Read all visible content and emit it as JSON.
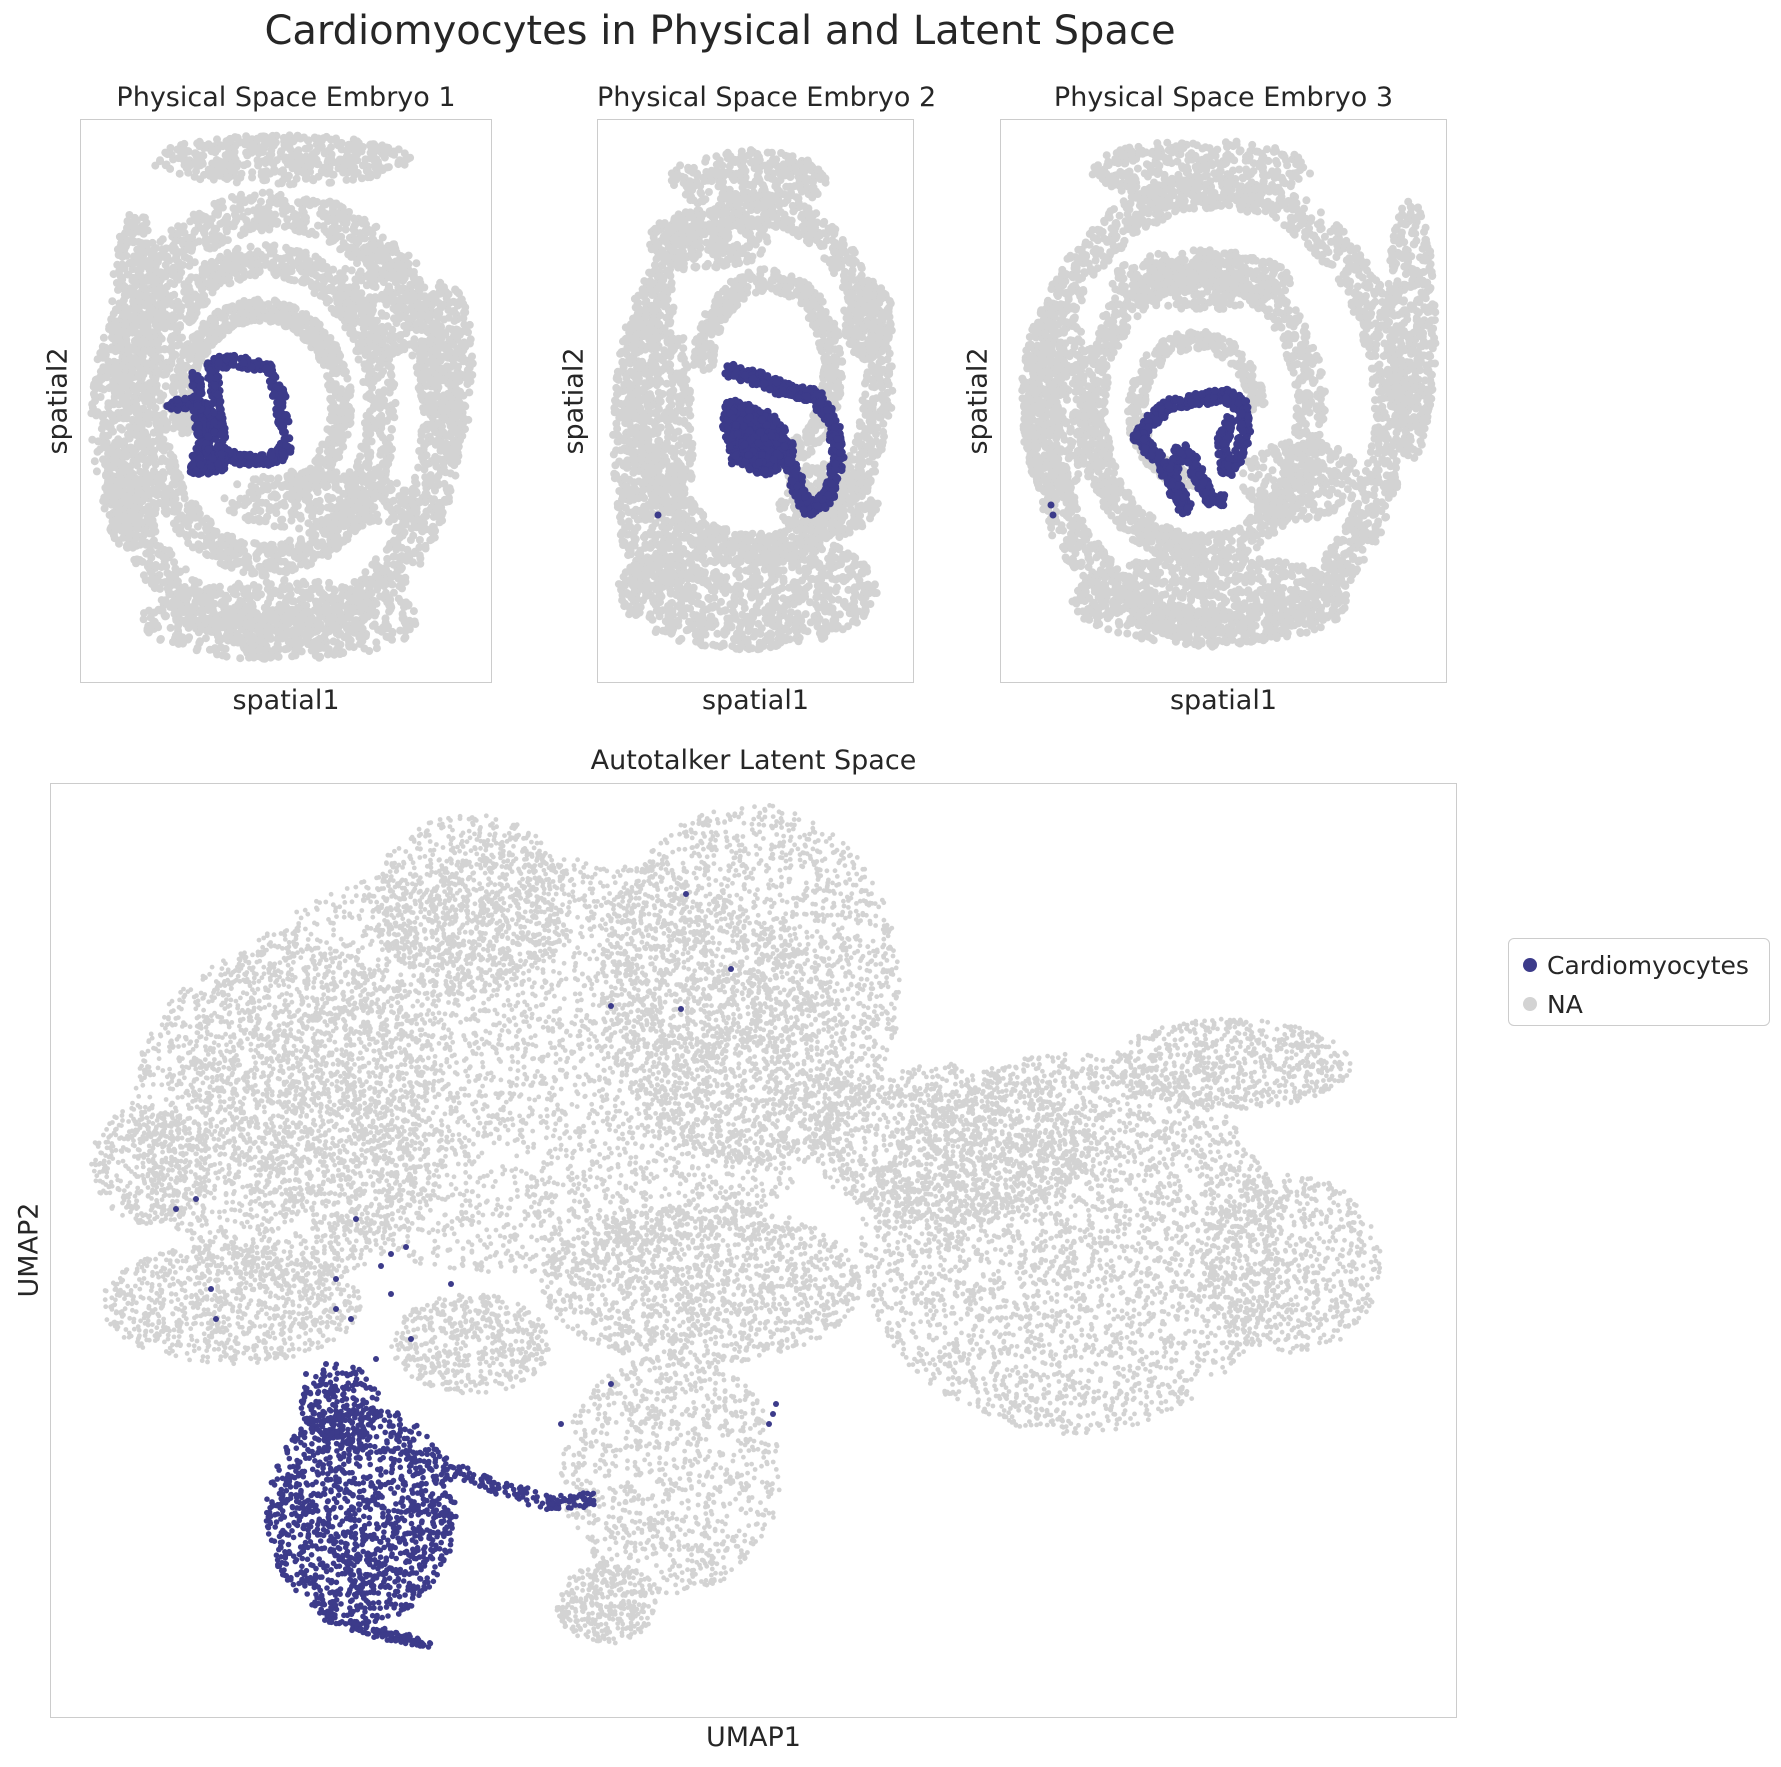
{
  "figure": {
    "title": "Cardiomyocytes in Physical and Latent Space"
  },
  "colors": {
    "highlight": "#3c3b8a",
    "background_cells": "#d3d3d3"
  },
  "legend": {
    "placement": "right",
    "items": [
      {
        "label": "Cardiomyocytes",
        "color": "#3c3b8a"
      },
      {
        "label": "NA",
        "color": "#d3d3d3"
      }
    ]
  },
  "chart_data": [
    {
      "type": "scatter",
      "title": "Physical Space Embryo 1",
      "xlabel": "spatial1",
      "ylabel": "spatial2",
      "grid": false,
      "series": [
        {
          "name": "NA",
          "color": "#d3d3d3"
        },
        {
          "name": "Cardiomyocytes",
          "color": "#3c3b8a"
        }
      ]
    },
    {
      "type": "scatter",
      "title": "Physical Space Embryo 2",
      "xlabel": "spatial1",
      "ylabel": "spatial2",
      "grid": false,
      "series": [
        {
          "name": "NA",
          "color": "#d3d3d3"
        },
        {
          "name": "Cardiomyocytes",
          "color": "#3c3b8a"
        }
      ]
    },
    {
      "type": "scatter",
      "title": "Physical Space Embryo 3",
      "xlabel": "spatial1",
      "ylabel": "spatial2",
      "grid": false,
      "series": [
        {
          "name": "NA",
          "color": "#d3d3d3"
        },
        {
          "name": "Cardiomyocytes",
          "color": "#3c3b8a"
        }
      ]
    },
    {
      "type": "scatter",
      "title": "Autotalker Latent Space",
      "xlabel": "UMAP1",
      "ylabel": "UMAP2",
      "grid": false,
      "series": [
        {
          "name": "NA",
          "color": "#d3d3d3"
        },
        {
          "name": "Cardiomyocytes",
          "color": "#3c3b8a"
        }
      ]
    }
  ]
}
